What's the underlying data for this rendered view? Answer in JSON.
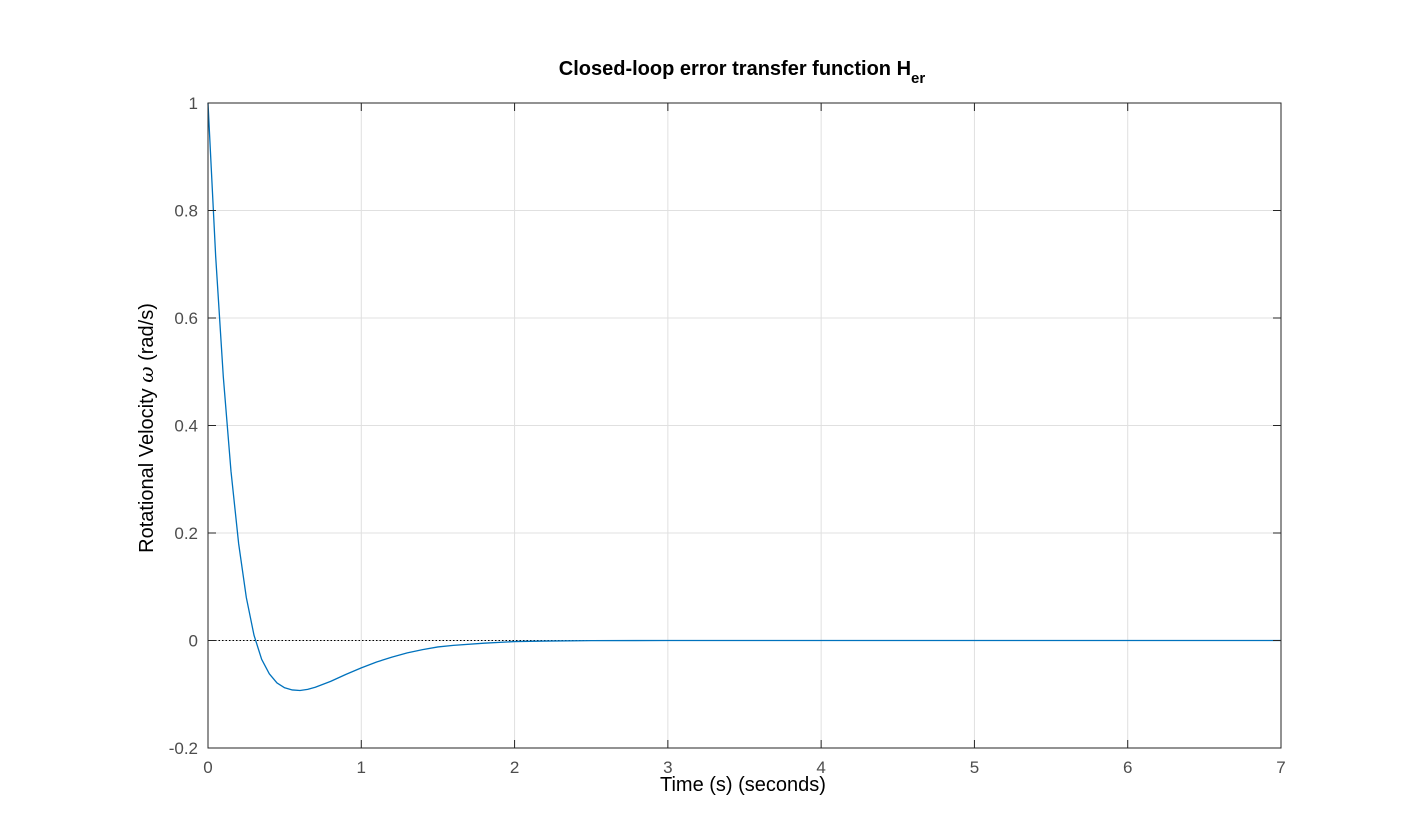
{
  "chart_data": {
    "type": "line",
    "title": "Closed-loop error transfer function H",
    "title_subscript": "er",
    "xlabel": "Time (s) (seconds)",
    "ylabel_prefix": "Rotational Velocity ",
    "ylabel_symbol": "ω",
    "ylabel_suffix": " (rad/s)",
    "xlim": [
      0,
      7
    ],
    "ylim": [
      -0.2,
      1
    ],
    "x_ticks": [
      0,
      1,
      2,
      3,
      4,
      5,
      6,
      7
    ],
    "x_tick_labels": [
      "0",
      "1",
      "2",
      "3",
      "4",
      "5",
      "6",
      "7"
    ],
    "y_ticks": [
      -0.2,
      0,
      0.2,
      0.4,
      0.6,
      0.8,
      1
    ],
    "y_tick_labels": [
      "-0.2",
      "0",
      "0.2",
      "0.4",
      "0.6",
      "0.8",
      "1"
    ],
    "grid": true,
    "reference_line_y": 0,
    "series": [
      {
        "color": "#0072bd",
        "x": [
          0,
          0.05,
          0.1,
          0.15,
          0.2,
          0.25,
          0.3,
          0.35,
          0.4,
          0.45,
          0.5,
          0.55,
          0.6,
          0.65,
          0.7,
          0.8,
          0.9,
          1.0,
          1.1,
          1.2,
          1.3,
          1.4,
          1.5,
          1.6,
          1.8,
          2.0,
          2.2,
          2.5,
          3.0,
          4.0,
          5.0,
          6.0,
          7.0
        ],
        "y": [
          1.0,
          0.715,
          0.49,
          0.315,
          0.18,
          0.08,
          0.01,
          -0.035,
          -0.062,
          -0.079,
          -0.088,
          -0.092,
          -0.093,
          -0.091,
          -0.087,
          -0.076,
          -0.063,
          -0.051,
          -0.04,
          -0.031,
          -0.023,
          -0.017,
          -0.012,
          -0.009,
          -0.005,
          -0.002,
          -0.001,
          -0.0003,
          0.0,
          0.0,
          0.0,
          0.0,
          0.0
        ]
      }
    ]
  }
}
